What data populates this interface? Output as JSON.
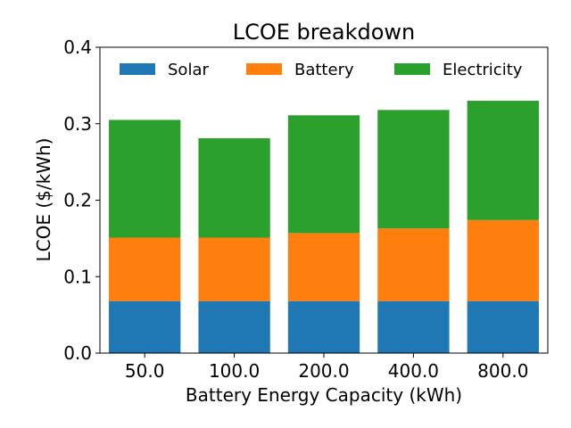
{
  "chart_data": {
    "type": "bar",
    "stacked": true,
    "title": "LCOE breakdown",
    "xlabel": "Battery Energy Capacity (kWh)",
    "ylabel": "LCOE ($/kWh)",
    "categories": [
      "50.0",
      "100.0",
      "200.0",
      "400.0",
      "800.0"
    ],
    "ylim": [
      0.0,
      0.4
    ],
    "yticks": [
      "0.0",
      "0.1",
      "0.2",
      "0.3",
      "0.4"
    ],
    "grid": false,
    "legend_position": "top",
    "series": [
      {
        "name": "Solar",
        "color": "#1f77b4",
        "values": [
          0.068,
          0.068,
          0.068,
          0.068,
          0.068
        ]
      },
      {
        "name": "Battery",
        "color": "#ff7f0e",
        "values": [
          0.083,
          0.083,
          0.089,
          0.095,
          0.106
        ]
      },
      {
        "name": "Electricity",
        "color": "#2ca02c",
        "values": [
          0.154,
          0.13,
          0.154,
          0.155,
          0.156
        ]
      }
    ]
  }
}
